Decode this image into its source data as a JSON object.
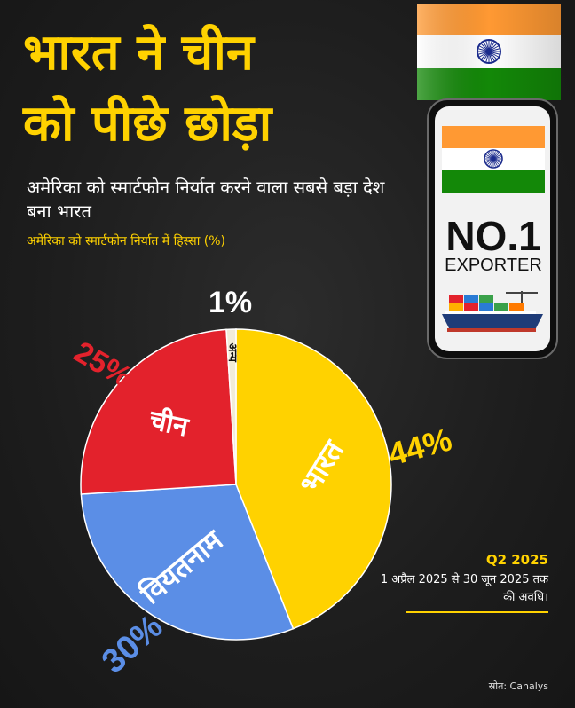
{
  "headline": {
    "line1": "भारत ने चीन",
    "line2": "को पीछे छोड़ा"
  },
  "subtitle": "अमेरिका को स्मार्टफोन निर्यात करने वाला सबसे बड़ा देश बना भारत",
  "badge": {
    "rank": "NO.1",
    "label": "EXPORTER"
  },
  "period": {
    "quarter": "Q2 2025",
    "description": "1 अप्रैल 2025 से 30 जून 2025 तक की अवधि।"
  },
  "source": "स्रोत: Canalys",
  "colors": {
    "accent": "#ffd200",
    "india": "#ffd200",
    "vietnam": "#5b8ee6",
    "china": "#e3222c",
    "other": "#f2ecd9",
    "saffron": "#ff9933",
    "green": "#138808",
    "chakra": "#1b2b8c"
  },
  "icons": [
    "india-flag-icon",
    "smartphone-icon",
    "cargo-ship-icon"
  ],
  "chart_data": {
    "type": "pie",
    "title": "अमेरिका को स्मार्टफोन निर्यात में हिस्सा (%)",
    "categories": [
      "भारत",
      "वियतनाम",
      "चीन",
      "अन्य"
    ],
    "values": [
      44,
      30,
      25,
      1
    ],
    "labels": [
      "44%",
      "30%",
      "25%",
      "1%"
    ],
    "colors": [
      "#ffd200",
      "#5b8ee6",
      "#e3222c",
      "#f2ecd9"
    ],
    "label_colors": [
      "#ffd200",
      "#5b8ee6",
      "#e3222c",
      "#ffffff"
    ],
    "start": "top",
    "direction": "clockwise"
  }
}
